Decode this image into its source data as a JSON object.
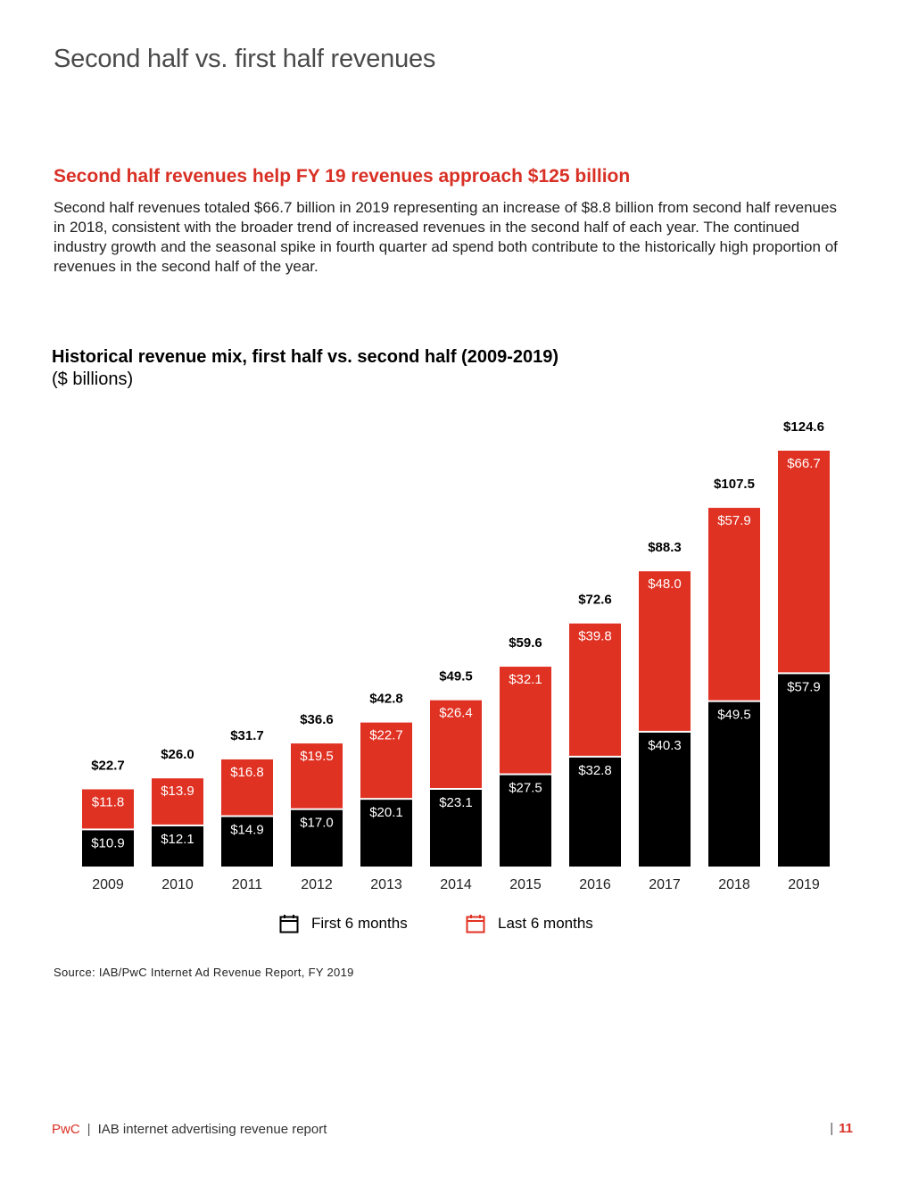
{
  "page": {
    "title": "Second half vs. first half revenues"
  },
  "section": {
    "heading": "Second half revenues help FY 19 revenues approach $125 billion",
    "body": "Second half revenues totaled $66.7 billion in 2019 representing an increase of $8.8 billion from second half revenues in 2018, consistent with the broader trend of increased revenues in the second half of each year. The continued industry growth and the seasonal spike in fourth quarter ad spend both contribute to the historically high proportion of revenues in the second half of the year."
  },
  "colors": {
    "first_half": "#000000",
    "second_half": "#e03223",
    "accent": "#d93025"
  },
  "chart_data": {
    "type": "bar",
    "stacked": true,
    "title": "Historical revenue mix, first half vs. second half (2009-2019)",
    "subtitle": "($ billions)",
    "categories": [
      "2009",
      "2010",
      "2011",
      "2012",
      "2013",
      "2014",
      "2015",
      "2016",
      "2017",
      "2018",
      "2019"
    ],
    "series": [
      {
        "name": "First 6 months",
        "values": [
          10.9,
          12.1,
          14.9,
          17.0,
          20.1,
          23.1,
          27.5,
          32.8,
          40.3,
          49.5,
          57.9
        ]
      },
      {
        "name": "Last 6 months",
        "values": [
          11.8,
          13.9,
          16.8,
          19.5,
          22.7,
          26.4,
          32.1,
          39.8,
          48.0,
          57.9,
          66.7
        ]
      }
    ],
    "totals": [
      22.7,
      26.0,
      31.7,
      36.6,
      42.8,
      49.5,
      59.6,
      72.6,
      88.3,
      107.5,
      124.6
    ],
    "value_prefix": "$",
    "ylim": [
      0,
      124.6
    ],
    "legend": [
      "First 6 months",
      "Last 6 months"
    ]
  },
  "source": "Source: IAB/PwC Internet Ad Revenue Report, FY 2019",
  "footer": {
    "brand": "PwC",
    "separator": "|",
    "report": "IAB internet advertising revenue report",
    "page_bar": "|",
    "page_number": "11"
  }
}
